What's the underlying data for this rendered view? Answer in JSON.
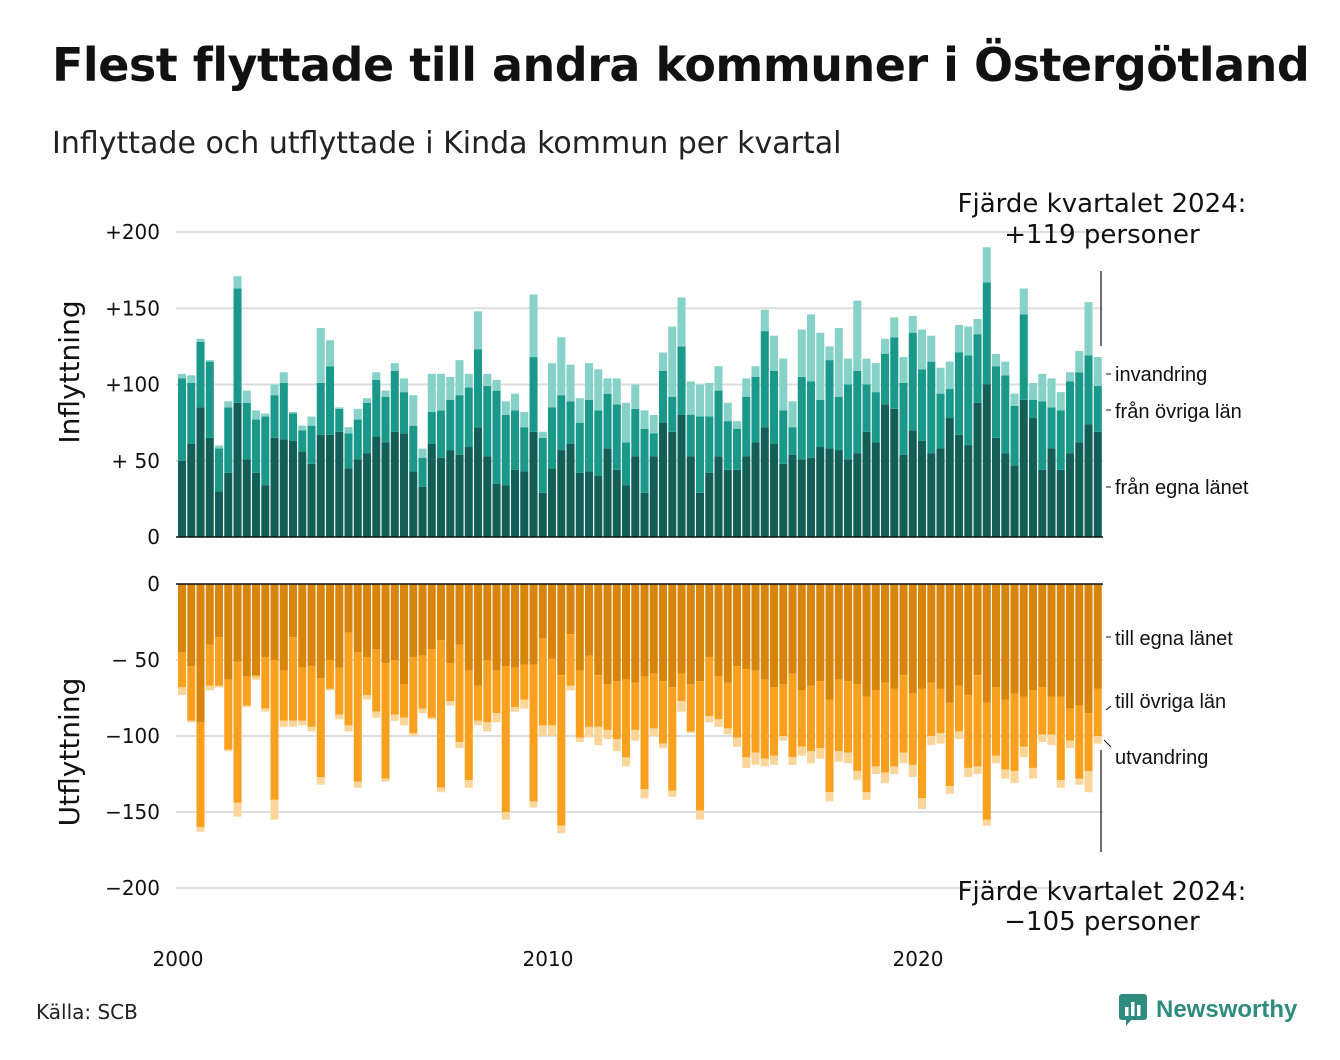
{
  "title": "Flest flyttade till andra kommuner i Östergötland",
  "subtitle": "Inflyttade och utflyttade i Kinda kommun per kvartal",
  "source": "Källa: SCB",
  "brand": "Newsworthy",
  "colors": {
    "in_egna": "#135f58",
    "in_ovriga": "#1a998a",
    "in_invandring": "#86d1c8",
    "ut_egna": "#d8850c",
    "ut_ovriga": "#f9a11f",
    "ut_utvandring": "#fbd59a",
    "grid": "#dddddd",
    "brand": "#2e8b7d"
  },
  "annotations": {
    "top_line1": "Fjärde kvartalet 2024:",
    "top_line2": "+119 personer",
    "bottom_line1": "Fjärde kvartalet 2024:",
    "bottom_line2": "−105 personer"
  },
  "chart_data": [
    {
      "type": "bar",
      "stacked": true,
      "ylabel": "Inflyttning",
      "ylim": [
        0,
        200
      ],
      "yticks": [
        {
          "value": 0,
          "label": "0"
        },
        {
          "value": 50,
          "label": "+ 50"
        },
        {
          "value": 100,
          "label": "+100"
        },
        {
          "value": 150,
          "label": "+150"
        },
        {
          "value": 200,
          "label": "+200"
        }
      ],
      "xticks": [
        {
          "value": 2000,
          "label": "2000"
        },
        {
          "value": 2010,
          "label": "2010"
        },
        {
          "value": 2020,
          "label": "2020"
        }
      ],
      "x_start": "2000 Q1",
      "x_end": "2024 Q4",
      "series": [
        {
          "name": "från egna länet",
          "values": [
            50,
            61,
            85,
            65,
            30,
            42,
            88,
            51,
            42,
            34,
            65,
            64,
            63,
            56,
            48,
            67,
            67,
            69,
            45,
            51,
            55,
            66,
            62,
            69,
            68,
            43,
            33,
            61,
            52,
            57,
            54,
            59,
            72,
            53,
            35,
            34,
            44,
            43,
            69,
            29,
            45,
            57,
            61,
            42,
            43,
            40,
            58,
            44,
            34,
            53,
            29,
            53,
            75,
            69,
            80,
            53,
            29,
            42,
            53,
            44,
            44,
            53,
            62,
            72,
            61,
            48,
            54,
            51,
            52,
            59,
            58,
            57,
            51,
            55,
            69,
            62,
            87,
            84,
            54,
            70,
            63,
            55,
            58,
            78,
            67,
            60,
            88,
            100,
            65,
            55,
            47,
            90,
            78,
            44,
            58,
            44,
            55,
            62,
            74,
            69
          ]
        },
        {
          "name": "från övriga län",
          "values": [
            54,
            40,
            43,
            50,
            28,
            43,
            75,
            37,
            35,
            45,
            28,
            37,
            18,
            14,
            25,
            34,
            45,
            15,
            23,
            26,
            33,
            37,
            30,
            40,
            27,
            30,
            19,
            21,
            31,
            33,
            39,
            39,
            51,
            46,
            61,
            46,
            39,
            29,
            49,
            36,
            40,
            36,
            28,
            33,
            47,
            43,
            36,
            43,
            28,
            31,
            42,
            15,
            34,
            23,
            45,
            27,
            50,
            37,
            43,
            32,
            27,
            39,
            43,
            63,
            48,
            35,
            18,
            54,
            50,
            31,
            58,
            35,
            49,
            54,
            31,
            33,
            33,
            47,
            47,
            64,
            47,
            60,
            36,
            19,
            54,
            59,
            45,
            67,
            47,
            51,
            39,
            56,
            12,
            45,
            27,
            39,
            47,
            46,
            45,
            30
          ]
        },
        {
          "name": "invandring",
          "values": [
            3,
            5,
            2,
            1,
            2,
            4,
            8,
            8,
            6,
            2,
            7,
            7,
            1,
            3,
            6,
            36,
            17,
            1,
            4,
            7,
            3,
            5,
            4,
            5,
            9,
            20,
            6,
            25,
            24,
            15,
            23,
            9,
            25,
            8,
            7,
            9,
            11,
            10,
            41,
            4,
            29,
            38,
            24,
            16,
            24,
            27,
            10,
            17,
            26,
            16,
            12,
            12,
            12,
            46,
            32,
            22,
            21,
            22,
            16,
            12,
            5,
            12,
            7,
            14,
            23,
            34,
            17,
            31,
            44,
            44,
            9,
            45,
            17,
            46,
            17,
            19,
            10,
            13,
            17,
            11,
            26,
            17,
            17,
            18,
            18,
            19,
            10,
            23,
            8,
            9,
            8,
            17,
            11,
            18,
            19,
            12,
            6,
            14,
            35,
            19
          ]
        }
      ]
    },
    {
      "type": "bar",
      "stacked": true,
      "ylabel": "Utflyttning",
      "ylim": [
        -200,
        0
      ],
      "yticks": [
        {
          "value": 0,
          "label": "0"
        },
        {
          "value": -50,
          "label": "− 50"
        },
        {
          "value": -100,
          "label": "−100"
        },
        {
          "value": -150,
          "label": "−150"
        },
        {
          "value": -200,
          "label": "−200"
        }
      ],
      "xticks": [
        {
          "value": 2000,
          "label": "2000"
        },
        {
          "value": 2010,
          "label": "2010"
        },
        {
          "value": 2020,
          "label": "2020"
        }
      ],
      "x_start": "2000 Q1",
      "x_end": "2024 Q4",
      "series": [
        {
          "name": "till egna länet",
          "values": [
            -45,
            -54,
            -91,
            -40,
            -35,
            -63,
            -51,
            -61,
            -60,
            -48,
            -50,
            -57,
            -35,
            -55,
            -54,
            -62,
            -50,
            -55,
            -32,
            -45,
            -48,
            -43,
            -52,
            -50,
            -66,
            -48,
            -47,
            -43,
            -37,
            -52,
            -40,
            -57,
            -67,
            -50,
            -57,
            -54,
            -55,
            -53,
            -53,
            -36,
            -49,
            -60,
            -33,
            -57,
            -47,
            -60,
            -66,
            -64,
            -63,
            -65,
            -61,
            -59,
            -64,
            -68,
            -59,
            -66,
            -64,
            -48,
            -61,
            -65,
            -54,
            -56,
            -57,
            -63,
            -68,
            -66,
            -59,
            -70,
            -67,
            -64,
            -76,
            -63,
            -64,
            -66,
            -74,
            -70,
            -65,
            -69,
            -60,
            -72,
            -69,
            -65,
            -69,
            -78,
            -67,
            -73,
            -60,
            -78,
            -68,
            -76,
            -72,
            -74,
            -70,
            -68,
            -74,
            -74,
            -82,
            -80,
            -85,
            -69
          ]
        },
        {
          "name": "till övriga län",
          "values": [
            -23,
            -36,
            -69,
            -27,
            -32,
            -46,
            -93,
            -19,
            -1,
            -34,
            -92,
            -33,
            -55,
            -35,
            -40,
            -65,
            -19,
            -31,
            -61,
            -85,
            -25,
            -41,
            -76,
            -36,
            -22,
            -50,
            -35,
            -45,
            -97,
            -25,
            -64,
            -72,
            -23,
            -41,
            -28,
            -96,
            -26,
            -23,
            -90,
            -57,
            -44,
            -99,
            -34,
            -44,
            -47,
            -34,
            -30,
            -38,
            -51,
            -31,
            -74,
            -36,
            -41,
            -68,
            -18,
            -31,
            -85,
            -39,
            -28,
            -30,
            -47,
            -58,
            -54,
            -52,
            -45,
            -34,
            -55,
            -37,
            -43,
            -44,
            -61,
            -47,
            -47,
            -57,
            -63,
            -50,
            -59,
            -51,
            -51,
            -47,
            -72,
            -35,
            -29,
            -55,
            -30,
            -48,
            -60,
            -77,
            -45,
            -46,
            -51,
            -33,
            -51,
            -31,
            -25,
            -55,
            -21,
            -48,
            -38,
            -31
          ]
        },
        {
          "name": "utvandring",
          "values": [
            -5,
            -1,
            -3,
            -3,
            -1,
            -1,
            -9,
            -1,
            -2,
            -2,
            -13,
            -4,
            -4,
            -3,
            -3,
            -5,
            -1,
            -3,
            -4,
            -4,
            -3,
            -4,
            -2,
            -4,
            -5,
            -2,
            -3,
            -1,
            -3,
            -3,
            -4,
            -5,
            -3,
            -6,
            -6,
            -5,
            -3,
            -6,
            -4,
            -7,
            -7,
            -5,
            -3,
            -3,
            -7,
            -12,
            -6,
            -8,
            -6,
            -7,
            -6,
            -5,
            -3,
            -4,
            -7,
            -1,
            -6,
            -4,
            -5,
            -4,
            -6,
            -7,
            -8,
            -5,
            -6,
            -3,
            -5,
            -6,
            -8,
            -7,
            -6,
            -7,
            -7,
            -6,
            -5,
            -5,
            -7,
            -5,
            -7,
            -8,
            -7,
            -6,
            -7,
            -5,
            -5,
            -6,
            -5,
            -4,
            -5,
            -6,
            -8,
            -7,
            -7,
            -5,
            -7,
            -5,
            -5,
            -4,
            -14,
            -5
          ]
        }
      ]
    }
  ]
}
